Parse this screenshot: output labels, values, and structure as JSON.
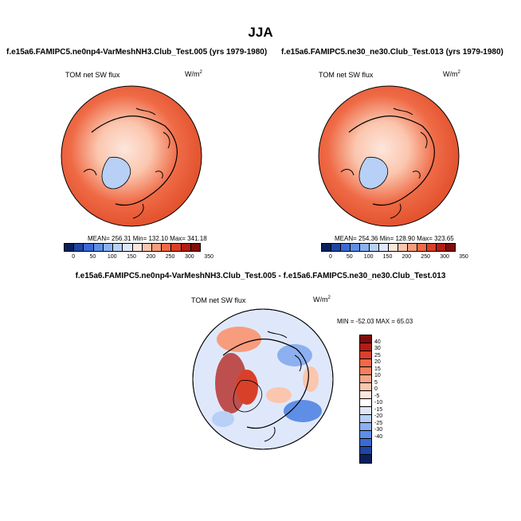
{
  "title": "JJA",
  "panel_left": {
    "title": "f.e15a6.FAMIPC5.ne0np4-VarMeshNH3.Club_Test.005 (yrs 1979-1980)",
    "variable": "TOM net SW flux",
    "units": "W/m",
    "units_sup": "2",
    "stats": "MEAN= 256.31  Min= 132.10  Max= 341.18"
  },
  "panel_right": {
    "title": "f.e15a6.FAMIPC5.ne30_ne30.Club_Test.013 (yrs 1979-1980)",
    "variable": "TOM net SW flux",
    "units": "W/m",
    "units_sup": "2",
    "stats": "MEAN= 254.36  Min= 128.90  Max= 323.65"
  },
  "panel_diff": {
    "title": "f.e15a6.FAMIPC5.ne0np4-VarMeshNH3.Club_Test.005 - f.e15a6.FAMIPC5.ne30_ne30.Club_Test.013",
    "variable": "TOM net SW flux",
    "units": "W/m",
    "units_sup": "2",
    "minmax": "MIN = -52.03 MAX =  65.03"
  },
  "colorbar_main": {
    "ticks": [
      "0",
      "50",
      "100",
      "150",
      "200",
      "250",
      "300",
      "350"
    ],
    "colors": [
      "#08215e",
      "#1f45a3",
      "#3a6ad2",
      "#5f8ee6",
      "#8cb0f0",
      "#b8d0f6",
      "#dfe8fb",
      "#fde6dc",
      "#fbc6ae",
      "#f79c7d",
      "#ef6a46",
      "#d9402a",
      "#b21d14",
      "#7f0d0a"
    ]
  },
  "colorbar_diff": {
    "ticks": [
      "40",
      "30",
      "25",
      "20",
      "15",
      "10",
      "5",
      "0",
      "-5",
      "-10",
      "-15",
      "-20",
      "-25",
      "-30",
      "-40"
    ],
    "colors": [
      "#7f0d0a",
      "#b21d14",
      "#d9402a",
      "#ef6a46",
      "#f47f5e",
      "#f9a58a",
      "#fbc6ae",
      "#fde6dc",
      "#ffffff",
      "#dfe8fb",
      "#b8d0f6",
      "#8cb0f0",
      "#5f8ee6",
      "#3a6ad2",
      "#1f45a3",
      "#08215e"
    ]
  }
}
